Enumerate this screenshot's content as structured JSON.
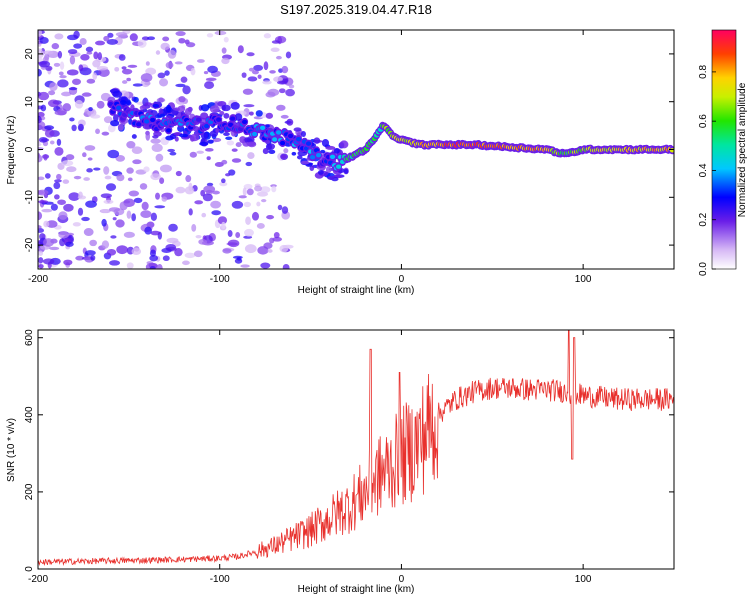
{
  "title": "S197.2025.319.04.47.R18",
  "chart_data": [
    {
      "type": "heatmap",
      "xlabel": "Height of straight line (km)",
      "ylabel": "Frequency (Hz)",
      "xlim": [
        -200,
        150
      ],
      "ylim": [
        -25,
        25
      ],
      "xticks": [
        -200,
        -100,
        0,
        100
      ],
      "xtick_labels": [
        "-200",
        "-100",
        "0",
        "100"
      ],
      "yticks": [
        -20,
        -10,
        0,
        10,
        20
      ],
      "ytick_labels": [
        "-20",
        "-10",
        "0",
        "10",
        "20"
      ],
      "colorbar": {
        "label": "Normalized spectral amplitude",
        "range": [
          0,
          0.97
        ],
        "ticks": [
          0.0,
          0.2,
          0.4,
          0.6,
          0.8
        ],
        "tick_labels": [
          "0.0",
          "0.2",
          "0.4",
          "0.6",
          "0.8"
        ]
      },
      "ridge": {
        "x": [
          -160,
          -150,
          -140,
          -130,
          -120,
          -110,
          -100,
          -90,
          -80,
          -70,
          -60,
          -50,
          -45,
          -40,
          -35,
          -30,
          -25,
          -20,
          -15,
          -12,
          -10,
          -5,
          0,
          10,
          20,
          40,
          60,
          80,
          90,
          100,
          120,
          150
        ],
        "freq": [
          9,
          7,
          6,
          5,
          6,
          5,
          6,
          5,
          4,
          3,
          2,
          0,
          -2,
          -2,
          -3,
          -2,
          -1,
          0,
          2,
          4,
          5,
          3,
          2,
          1,
          1,
          1,
          0.5,
          0,
          -1,
          0,
          0,
          0
        ],
        "amp": [
          0.3,
          0.3,
          0.35,
          0.3,
          0.35,
          0.3,
          0.3,
          0.3,
          0.35,
          0.35,
          0.35,
          0.4,
          0.3,
          0.3,
          0.5,
          0.5,
          0.6,
          0.6,
          0.6,
          0.5,
          0.6,
          0.7,
          0.7,
          0.8,
          0.85,
          0.9,
          0.85,
          0.8,
          0.6,
          0.7,
          0.75,
          0.8
        ]
      }
    },
    {
      "type": "line",
      "xlabel": "Height of straight line (km)",
      "ylabel": "SNR (10 * v/v)",
      "xlim": [
        -200,
        150
      ],
      "ylim": [
        0,
        620
      ],
      "xticks": [
        -200,
        -100,
        0,
        100
      ],
      "xtick_labels": [
        "-200",
        "-100",
        "0",
        "100"
      ],
      "yticks": [
        0,
        200,
        400,
        600
      ],
      "ytick_labels": [
        "0",
        "200",
        "400",
        "600"
      ],
      "color": "#e8302c",
      "envelope": {
        "x": [
          -200,
          -150,
          -120,
          -100,
          -90,
          -80,
          -70,
          -60,
          -50,
          -40,
          -30,
          -20,
          -15,
          -10,
          -5,
          0,
          10,
          20,
          30,
          40,
          50,
          60,
          70,
          80,
          90,
          100,
          110,
          120,
          130,
          150
        ],
        "snr": [
          18,
          22,
          25,
          28,
          32,
          45,
          60,
          80,
          100,
          130,
          160,
          200,
          230,
          250,
          270,
          290,
          330,
          400,
          440,
          460,
          470,
          470,
          465,
          465,
          460,
          450,
          445,
          440,
          440,
          440
        ]
      },
      "spikes": [
        {
          "x": -17,
          "snr": 570
        },
        {
          "x": -1,
          "snr": 510
        },
        {
          "x": 92,
          "snr": 620
        },
        {
          "x": 95,
          "snr": 600
        },
        {
          "x": 94,
          "snr": 285
        }
      ]
    }
  ]
}
